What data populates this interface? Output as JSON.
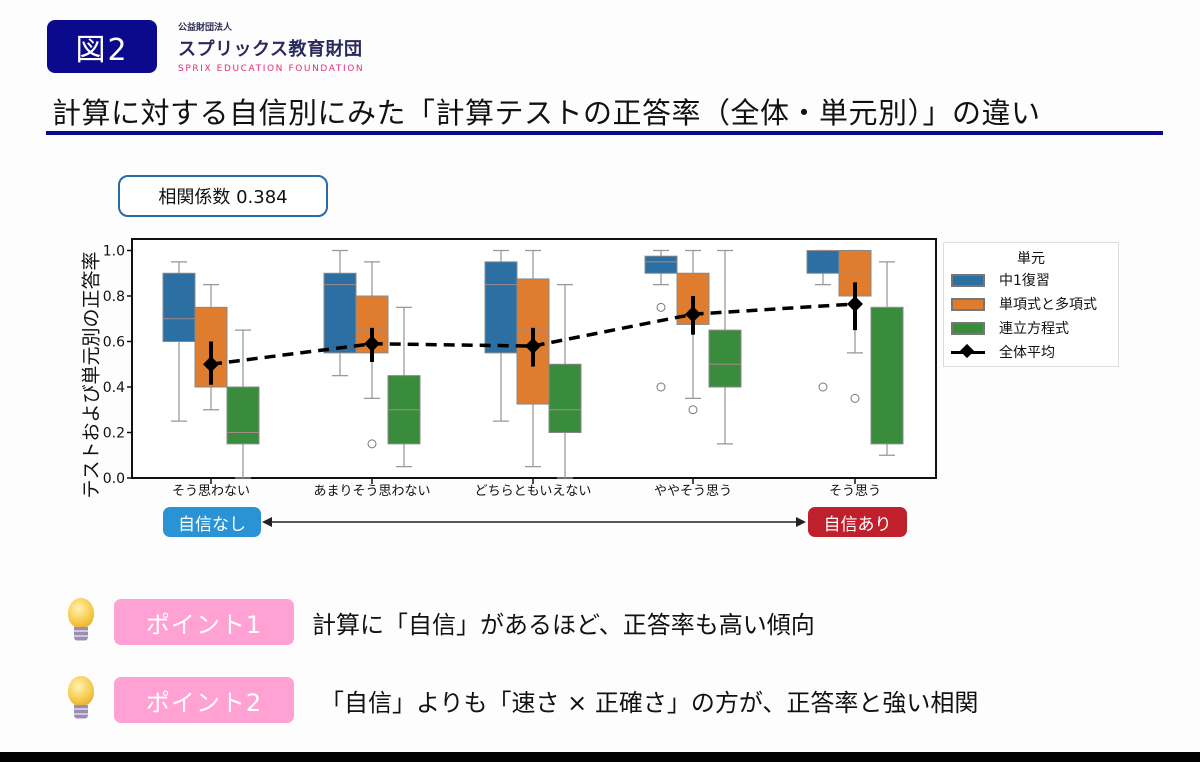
{
  "header": {
    "figure_label": "図2",
    "org_sub": "公益財団法人",
    "org_name": "スプリックス教育財団",
    "org_en": "SPRIX EDUCATION FOUNDATION"
  },
  "title": "計算に対する自信別にみた「計算テストの正答率（全体・単元別）」の違い",
  "correlation_label": "相関係数 0.384",
  "confidence_axis": {
    "low": "自信なし",
    "high": "自信あり"
  },
  "colors": {
    "blue": "#2b6fa3",
    "orange": "#df7c2e",
    "green": "#3a8c3d",
    "title_rule": "#0b0a8c",
    "badge": "#0b0a8c",
    "pill_low": "#2a93d5",
    "pill_high": "#c01f2c",
    "point_badge": "#ffa2d3"
  },
  "points": [
    {
      "label": "ポイント1",
      "text": "計算に「自信」があるほど、正答率も高い傾向"
    },
    {
      "label": "ポイント2",
      "text": "「自信」よりも「速さ × 正確さ」の方が、正答率と強い相関"
    }
  ],
  "chart_data": {
    "type": "box",
    "title": "",
    "xlabel": "",
    "ylabel": "テストおよび単元別の正答率",
    "ylim": [
      0.0,
      1.0
    ],
    "yticks": [
      "0.0",
      "0.2",
      "0.4",
      "0.6",
      "0.8",
      "1.0"
    ],
    "categories": [
      "そう思わない",
      "あまりそう思わない",
      "どちらともいえない",
      "ややそう思う",
      "そう思う"
    ],
    "legend_title": "単元",
    "legend_position": "right-outside",
    "legend": [
      "中1復習",
      "単項式と多項式",
      "連立方程式",
      "全体平均"
    ],
    "series": [
      {
        "name": "中1復習",
        "color": "#2b6fa3",
        "boxes": [
          {
            "whislo": 0.25,
            "q1": 0.6,
            "med": 0.7,
            "q3": 0.9,
            "whishi": 0.95,
            "fliers": []
          },
          {
            "whislo": 0.45,
            "q1": 0.55,
            "med": 0.85,
            "q3": 0.9,
            "whishi": 1.0,
            "fliers": []
          },
          {
            "whislo": 0.25,
            "q1": 0.55,
            "med": 0.85,
            "q3": 0.95,
            "whishi": 1.0,
            "fliers": []
          },
          {
            "whislo": 0.85,
            "q1": 0.9,
            "med": 0.95,
            "q3": 0.975,
            "whishi": 1.0,
            "fliers": [
              0.75,
              0.4
            ]
          },
          {
            "whislo": 0.85,
            "q1": 0.9,
            "med": 1.0,
            "q3": 1.0,
            "whishi": 1.0,
            "fliers": [
              0.4
            ]
          }
        ]
      },
      {
        "name": "単項式と多項式",
        "color": "#df7c2e",
        "boxes": [
          {
            "whislo": 0.3,
            "q1": 0.4,
            "med": 0.45,
            "q3": 0.75,
            "whishi": 0.85,
            "fliers": []
          },
          {
            "whislo": 0.35,
            "q1": 0.55,
            "med": 0.65,
            "q3": 0.8,
            "whishi": 0.95,
            "fliers": [
              0.15
            ]
          },
          {
            "whislo": 0.05,
            "q1": 0.325,
            "med": 0.65,
            "q3": 0.875,
            "whishi": 1.0,
            "fliers": []
          },
          {
            "whislo": 0.35,
            "q1": 0.675,
            "med": 0.75,
            "q3": 0.9,
            "whishi": 1.0,
            "fliers": [
              0.3
            ]
          },
          {
            "whislo": 0.55,
            "q1": 0.8,
            "med": 0.9,
            "q3": 1.0,
            "whishi": 1.0,
            "fliers": [
              0.35
            ]
          }
        ]
      },
      {
        "name": "連立方程式",
        "color": "#3a8c3d",
        "boxes": [
          {
            "whislo": 0.0,
            "q1": 0.15,
            "med": 0.2,
            "q3": 0.4,
            "whishi": 0.65,
            "fliers": []
          },
          {
            "whislo": 0.05,
            "q1": 0.15,
            "med": 0.3,
            "q3": 0.45,
            "whishi": 0.75,
            "fliers": []
          },
          {
            "whislo": 0.0,
            "q1": 0.2,
            "med": 0.3,
            "q3": 0.5,
            "whishi": 0.85,
            "fliers": []
          },
          {
            "whislo": 0.15,
            "q1": 0.4,
            "med": 0.5,
            "q3": 0.65,
            "whishi": 1.0,
            "fliers": []
          },
          {
            "whislo": 0.1,
            "q1": 0.15,
            "med": 0.75,
            "q3": 0.75,
            "whishi": 0.95,
            "fliers": []
          }
        ]
      },
      {
        "name": "全体平均",
        "color": "#000000",
        "type": "line",
        "linestyle": "dashed",
        "marker": "diamond",
        "values": [
          0.5,
          0.59,
          0.58,
          0.72,
          0.765
        ],
        "errors": [
          [
            0.41,
            0.6
          ],
          [
            0.51,
            0.66
          ],
          [
            0.49,
            0.66
          ],
          [
            0.63,
            0.8
          ],
          [
            0.65,
            0.86
          ]
        ]
      }
    ]
  }
}
